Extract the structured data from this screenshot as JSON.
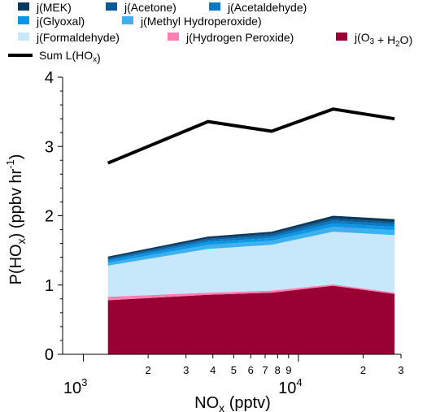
{
  "chart_data": {
    "type": "area",
    "xlabel": "NO",
    "xlabel_sub": "x",
    "xlabel_unit": "(pptv)",
    "ylabel": "P(HO",
    "ylabel_sub": "x",
    "ylabel_unit": ") (ppbv hr",
    "ylabel_sup": "-1",
    "ylabel_close": ")",
    "x_scale": "log",
    "xlim": [
      800,
      30000
    ],
    "ylim": [
      0,
      4
    ],
    "y_ticks": [
      "0",
      "1",
      "2",
      "3",
      "4"
    ],
    "x_major_ticks": [
      {
        "base": "10",
        "exp": "3"
      },
      {
        "base": "10",
        "exp": "4"
      }
    ],
    "x_minor_ticks": [
      {
        "v": 2000,
        "label": "2"
      },
      {
        "v": 3000,
        "label": "3"
      },
      {
        "v": 4000,
        "label": "4"
      },
      {
        "v": 5000,
        "label": "5"
      },
      {
        "v": 6000,
        "label": "6"
      },
      {
        "v": 7000,
        "label": "7"
      },
      {
        "v": 8000,
        "label": "8"
      },
      {
        "v": 9000,
        "label": "9"
      },
      {
        "v": 20000,
        "label": "2"
      },
      {
        "v": 30000,
        "label": "3"
      }
    ],
    "x": [
      1300,
      3800,
      7500,
      14500,
      28000
    ],
    "series": [
      {
        "name": "j(O3 + H2O)",
        "color": "#990033",
        "values": [
          0.78,
          0.86,
          0.89,
          0.99,
          0.87
        ]
      },
      {
        "name": "j(Hydrogen Peroxide)",
        "color": "#ff7fb2",
        "values": [
          0.05,
          0.03,
          0.03,
          0.02,
          0.02
        ]
      },
      {
        "name": "j(Formaldehyde)",
        "color": "#c6e8fa",
        "values": [
          0.45,
          0.63,
          0.66,
          0.76,
          0.83
        ]
      },
      {
        "name": "j(Methyl Hydroperoxide)",
        "color": "#3fb0ee",
        "values": [
          0.04,
          0.06,
          0.06,
          0.07,
          0.07
        ]
      },
      {
        "name": "j(Glyoxal)",
        "color": "#0b97e6",
        "values": [
          0.03,
          0.04,
          0.04,
          0.05,
          0.05
        ]
      },
      {
        "name": "j(Acetaldehyde)",
        "color": "#0a79c2",
        "values": [
          0.02,
          0.03,
          0.03,
          0.04,
          0.04
        ]
      },
      {
        "name": "j(Acetone)",
        "color": "#0b5a94",
        "values": [
          0.02,
          0.02,
          0.03,
          0.03,
          0.03
        ]
      },
      {
        "name": "j(MEK)",
        "color": "#0a3a5e",
        "values": [
          0.02,
          0.03,
          0.03,
          0.04,
          0.04
        ]
      }
    ],
    "sum_line": {
      "name": "Sum L(HOx)",
      "color": "#000000",
      "values": [
        2.76,
        3.36,
        3.22,
        3.54,
        3.4
      ]
    },
    "legend": {
      "placement": "top",
      "rows": [
        [
          {
            "key": "j(MEK)",
            "label": "j(MEK)"
          },
          {
            "key": "j(Acetone)",
            "label": "j(Acetone)"
          },
          {
            "key": "j(Acetaldehyde)",
            "label": "j(Acetaldehyde)"
          }
        ],
        [
          {
            "key": "j(Glyoxal)",
            "label": "j(Glyoxal)"
          },
          {
            "key": "j(Methyl Hydroperoxide)",
            "label": "j(Methyl Hydroperoxide)"
          }
        ],
        [
          {
            "key": "j(Formaldehyde)",
            "label": "j(Formaldehyde)"
          },
          {
            "key": "j(Hydrogen Peroxide)",
            "label": "j(Hydrogen Peroxide)"
          },
          {
            "key": "j(O3 + H2O)",
            "label": "j(O3 + H2O)"
          }
        ],
        [
          {
            "key": "Sum L(HOx)",
            "label": "Sum L(HOx)",
            "line": true
          }
        ]
      ]
    }
  }
}
